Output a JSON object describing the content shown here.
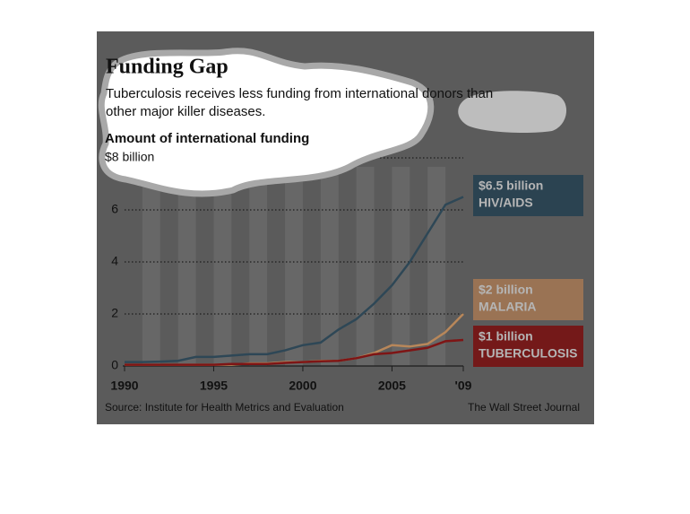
{
  "chart_data": {
    "type": "line",
    "title": "Funding Gap",
    "subtitle": "Tuberculosis receives less funding from international donors than other major killer diseases.",
    "y_label": "Amount of international funding",
    "source": "Source: Institute for Health Metrics and Evaluation",
    "credit": "The Wall Street Journal",
    "x": [
      1990,
      1991,
      1992,
      1993,
      1994,
      1995,
      1996,
      1997,
      1998,
      1999,
      2000,
      2001,
      2002,
      2003,
      2004,
      2005,
      2006,
      2007,
      2008,
      2009
    ],
    "xlim": [
      1990,
      2009
    ],
    "xticks": [
      1990,
      1995,
      2000,
      2005,
      {
        "value": 2009,
        "label": "'09"
      }
    ],
    "ylim": [
      0,
      8
    ],
    "yticks": [
      0,
      2,
      4,
      6,
      {
        "value": 8,
        "label": "$8 billion"
      }
    ],
    "grid": true,
    "series": [
      {
        "name": "HIV/AIDS",
        "end_label": "$6.5 billion",
        "color": "#2e4756",
        "box_color": "#2b4351",
        "values": [
          0.15,
          0.15,
          0.17,
          0.2,
          0.35,
          0.35,
          0.4,
          0.45,
          0.45,
          0.6,
          0.8,
          0.9,
          1.4,
          1.8,
          2.4,
          3.1,
          4.0,
          5.1,
          6.2,
          6.5
        ]
      },
      {
        "name": "MALARIA",
        "end_label": "$2 billion",
        "color": "#b8875a",
        "box_color": "#9a7354",
        "values": [
          0.05,
          0.05,
          0.05,
          0.05,
          0.05,
          0.05,
          0.05,
          0.1,
          0.1,
          0.15,
          0.15,
          0.2,
          0.2,
          0.3,
          0.5,
          0.8,
          0.75,
          0.85,
          1.3,
          2.0
        ]
      },
      {
        "name": "TUBERCULOSIS",
        "end_label": "$1 billion",
        "color": "#7e1515",
        "box_color": "#741919",
        "values": [
          0.05,
          0.05,
          0.05,
          0.05,
          0.05,
          0.05,
          0.08,
          0.08,
          0.08,
          0.12,
          0.15,
          0.18,
          0.2,
          0.3,
          0.45,
          0.5,
          0.6,
          0.7,
          0.95,
          1.0
        ]
      }
    ]
  }
}
